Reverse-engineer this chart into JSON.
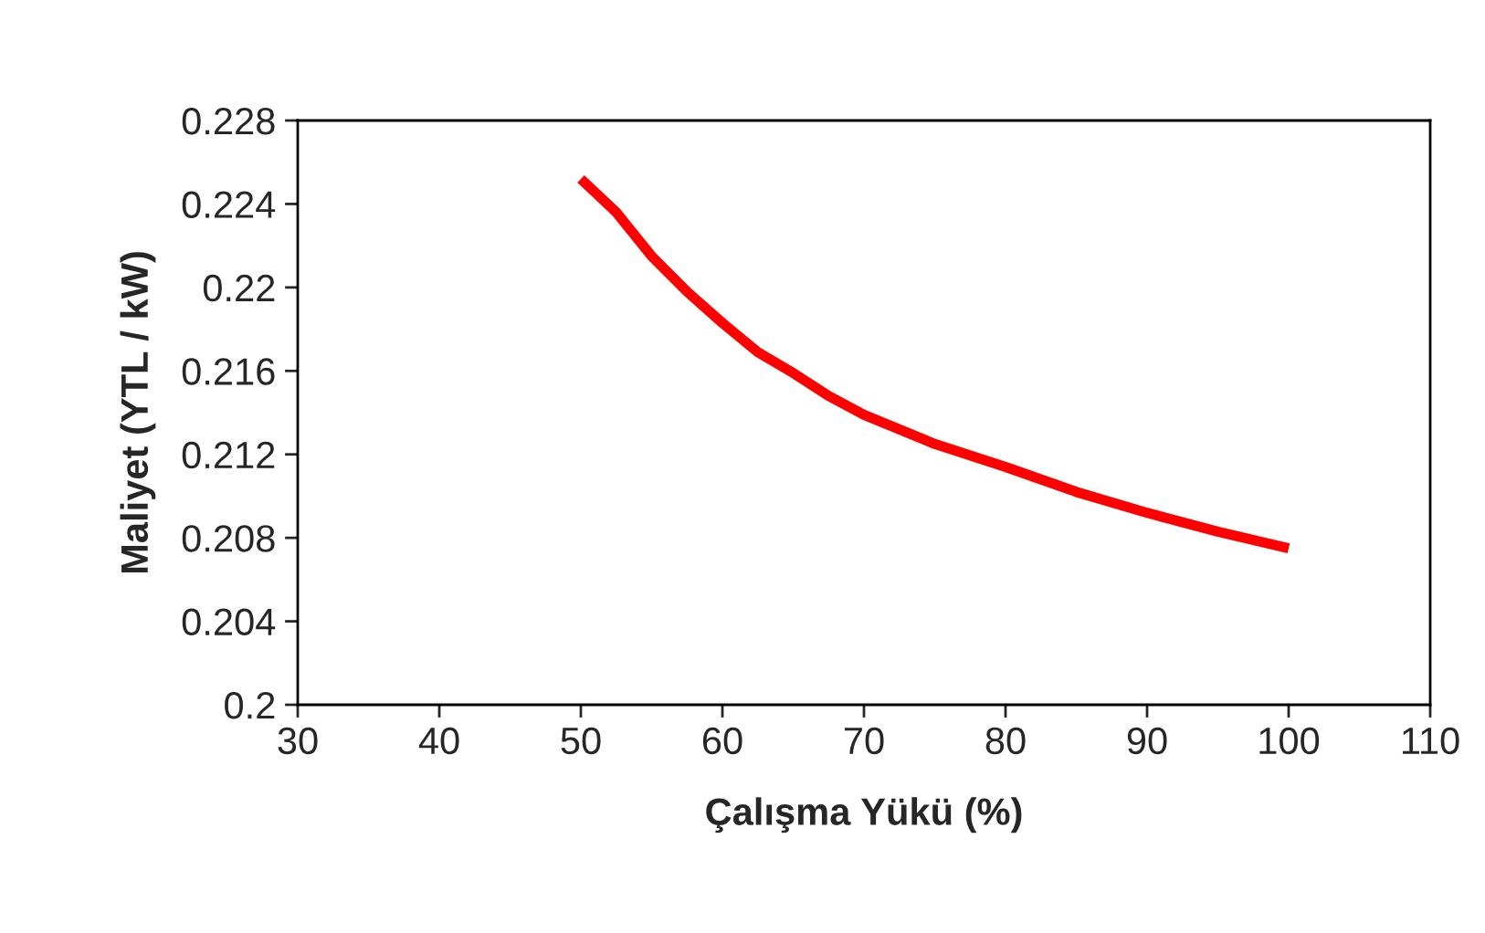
{
  "chart_data": {
    "type": "line",
    "xlabel": "Çalışma Yükü (%)",
    "ylabel": "Maliyet (YTL / kW)",
    "series": [
      {
        "color": "#ff0000",
        "x": [
          50,
          52.5,
          55,
          57.5,
          60,
          62.5,
          65,
          67.5,
          70,
          75,
          80,
          85,
          90,
          95,
          100
        ],
        "values": [
          0.2252,
          0.2236,
          0.2215,
          0.2198,
          0.2183,
          0.2169,
          0.2159,
          0.2148,
          0.2139,
          0.2125,
          0.2114,
          0.2102,
          0.2092,
          0.2083,
          0.2075
        ]
      }
    ],
    "xlim": [
      30,
      110
    ],
    "xticks": [
      30,
      40,
      50,
      60,
      70,
      80,
      90,
      100,
      110
    ],
    "ylim": [
      0.2,
      0.228
    ],
    "yticks": [
      {
        "value": 0.2,
        "label": "0.2"
      },
      {
        "value": 0.204,
        "label": "0.204"
      },
      {
        "value": 0.208,
        "label": "0.208"
      },
      {
        "value": 0.212,
        "label": "0.212"
      },
      {
        "value": 0.216,
        "label": "0.216"
      },
      {
        "value": 0.22,
        "label": "0.22"
      },
      {
        "value": 0.224,
        "label": "0.224"
      },
      {
        "value": 0.228,
        "label": "0.228"
      }
    ],
    "grid": false,
    "legend": false,
    "marker": "none",
    "line_style": "solid"
  }
}
